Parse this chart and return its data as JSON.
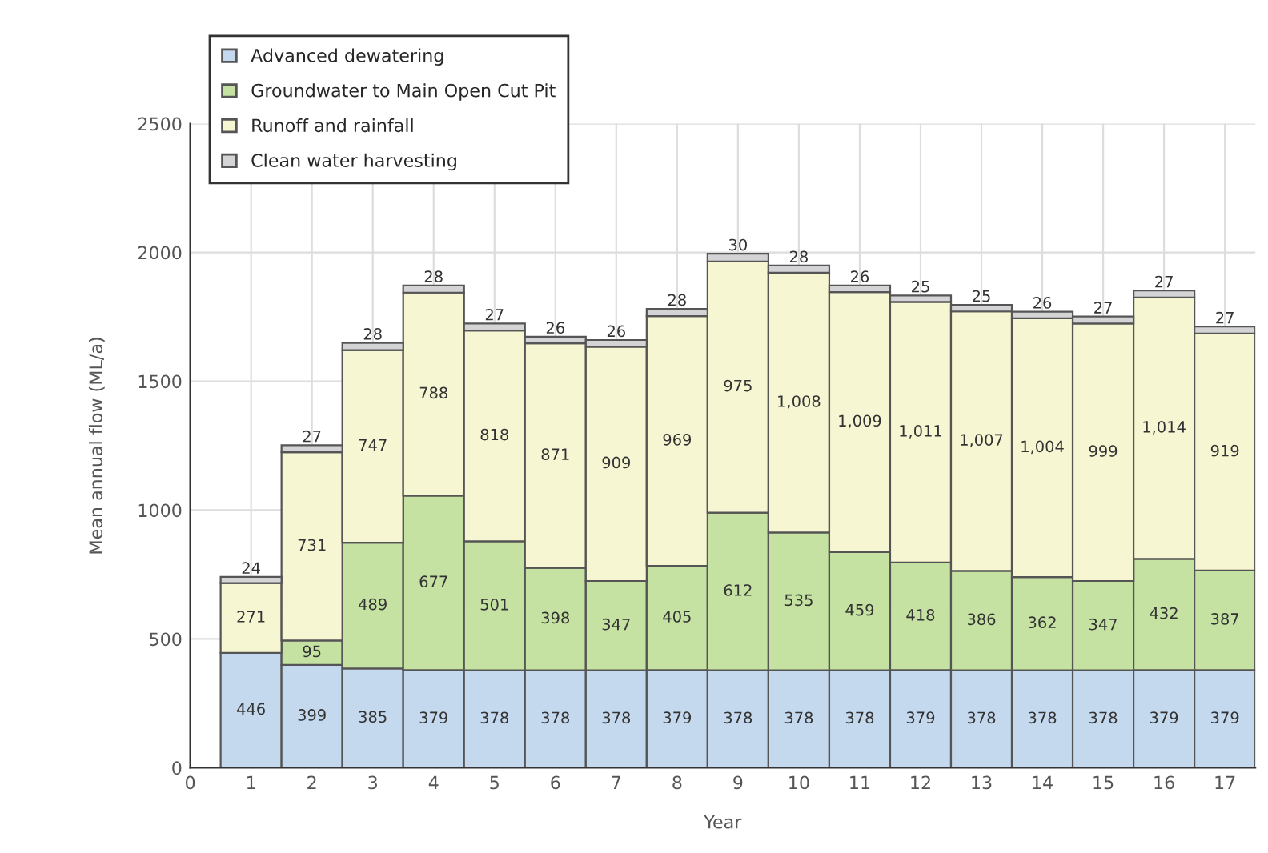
{
  "chart_data": {
    "type": "bar",
    "stacked": true,
    "xlabel": "Year",
    "ylabel": "Mean annual flow (ML/a)",
    "x": [
      1,
      2,
      3,
      4,
      5,
      6,
      7,
      8,
      9,
      10,
      11,
      12,
      13,
      14,
      15,
      16,
      17
    ],
    "xlim": [
      0,
      17.5
    ],
    "xticks": [
      0,
      1,
      2,
      3,
      4,
      5,
      6,
      7,
      8,
      9,
      10,
      11,
      12,
      13,
      14,
      15,
      16,
      17
    ],
    "ylim": [
      0,
      2500
    ],
    "yticks": [
      0,
      500,
      1000,
      1500,
      2000,
      2500
    ],
    "grid": true,
    "legend": "top left",
    "series": [
      {
        "name": "Advanced dewatering",
        "color": "#c5d9ee",
        "values": [
          446,
          399,
          385,
          379,
          378,
          378,
          378,
          379,
          378,
          378,
          378,
          379,
          378,
          378,
          378,
          379,
          379
        ],
        "value_labels": [
          "446",
          "399",
          "385",
          "379",
          "378",
          "378",
          "378",
          "379",
          "378",
          "378",
          "378",
          "379",
          "378",
          "378",
          "378",
          "379",
          "379"
        ]
      },
      {
        "name": "Groundwater to Main Open Cut Pit",
        "color": "#c5e2a2",
        "values": [
          0,
          95,
          489,
          677,
          501,
          398,
          347,
          405,
          612,
          535,
          459,
          418,
          386,
          362,
          347,
          432,
          387
        ],
        "value_labels": [
          null,
          "95",
          "489",
          "677",
          "501",
          "398",
          "347",
          "405",
          "612",
          "535",
          "459",
          "418",
          "386",
          "362",
          "347",
          "432",
          "387"
        ]
      },
      {
        "name": "Runoff and rainfall",
        "color": "#f7f6d2",
        "values": [
          271,
          731,
          747,
          788,
          818,
          871,
          909,
          969,
          975,
          1008,
          1009,
          1011,
          1007,
          1004,
          999,
          1014,
          919
        ],
        "value_labels": [
          "271",
          "731",
          "747",
          "788",
          "818",
          "871",
          "909",
          "969",
          "975",
          "1,008",
          "1,009",
          "1,011",
          "1,007",
          "1,004",
          "999",
          "1,014",
          "919"
        ]
      },
      {
        "name": "Clean water harvesting",
        "color": "#d4d4d6",
        "values": [
          24,
          27,
          28,
          28,
          27,
          26,
          26,
          28,
          30,
          28,
          26,
          25,
          25,
          26,
          27,
          27,
          27
        ],
        "value_labels": [
          "24",
          "27",
          "28",
          "28",
          "27",
          "26",
          "26",
          "28",
          "30",
          "28",
          "26",
          "25",
          "25",
          "26",
          "27",
          "27",
          "27"
        ]
      }
    ]
  }
}
